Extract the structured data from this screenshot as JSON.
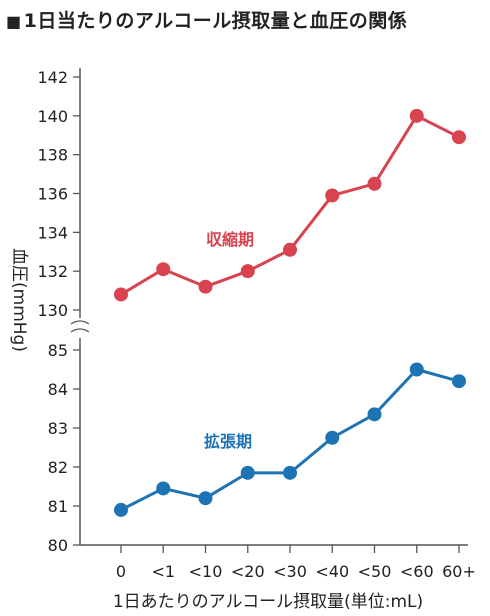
{
  "title": "1日当たりのアルコール摂取量と血圧の関係",
  "title_marker": "■",
  "chart_data": {
    "type": "line",
    "title": "1日当たりのアルコール摂取量と血圧の関係",
    "xlabel": "1日あたりのアルコール摂取量(単位:mL)",
    "ylabel": "血圧(mmHg)",
    "categories": [
      "0",
      "<1",
      "<10",
      "<20",
      "<30",
      "<40",
      "<50",
      "<60",
      "60+"
    ],
    "broken_axis": true,
    "upper_axis": {
      "ylim": [
        129,
        143
      ],
      "ticks": [
        130,
        132,
        134,
        136,
        138,
        140,
        142
      ]
    },
    "lower_axis": {
      "ylim": [
        80,
        85.5
      ],
      "ticks": [
        80,
        81,
        82,
        83,
        84,
        85
      ]
    },
    "series": [
      {
        "name": "収縮期",
        "axis": "upper",
        "color": "#d9434f",
        "values": [
          130.8,
          132.1,
          131.2,
          132.0,
          133.1,
          135.9,
          136.5,
          140.0,
          138.9
        ]
      },
      {
        "name": "拡張期",
        "axis": "lower",
        "color": "#1e73b4",
        "values": [
          80.9,
          81.45,
          81.2,
          81.85,
          81.85,
          82.75,
          83.35,
          84.5,
          84.2
        ]
      }
    ],
    "grid": false,
    "legend": "inline labels"
  }
}
